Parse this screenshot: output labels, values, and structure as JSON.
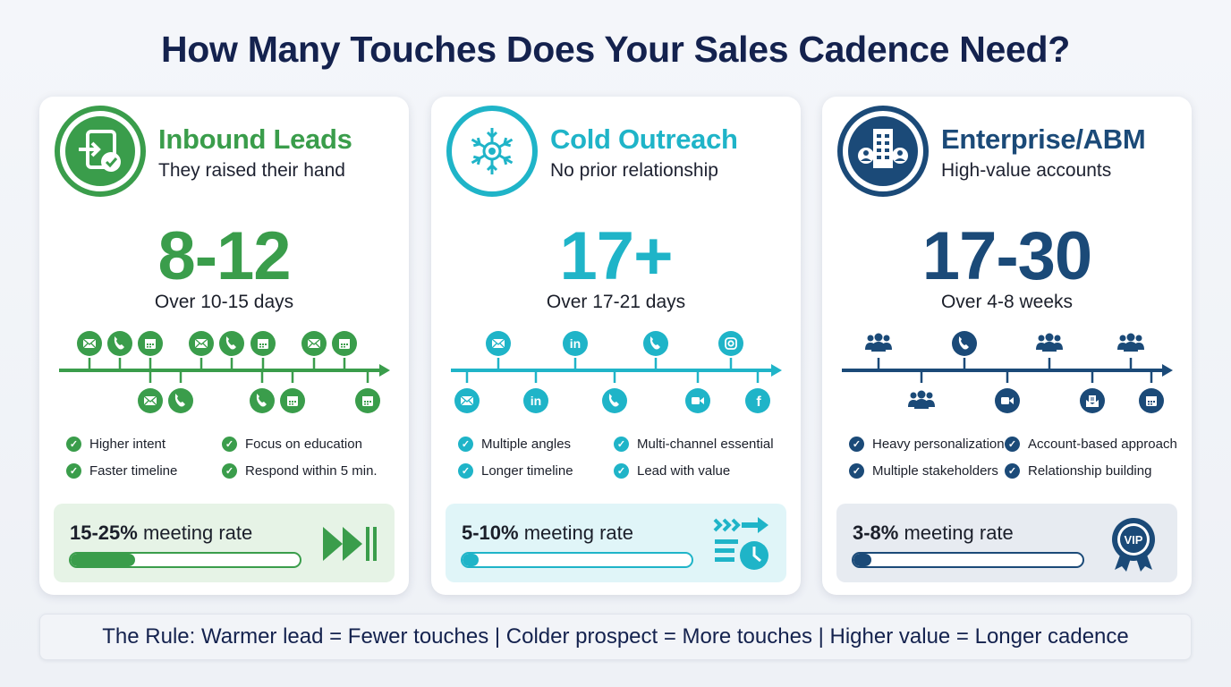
{
  "title": "How Many Touches Does Your Sales Cadence Need?",
  "cards": [
    {
      "id": "inbound",
      "color": "#3a9d4b",
      "panel_bg": "#e6f3e6",
      "icon": "sign-in-check-icon",
      "title": "Inbound Leads",
      "subtitle": "They raised their hand",
      "touches": "8-12",
      "duration": "Over 10-15 days",
      "timeline": {
        "above": [
          "mail",
          "phone",
          "calendar",
          "mail",
          "phone",
          "calendar",
          "mail",
          "calendar"
        ],
        "below": [
          "mail",
          "phone",
          "phone",
          "calendar",
          "calendar"
        ]
      },
      "points": [
        "Higher intent",
        "Focus on education",
        "Faster timeline",
        "Respond within 5 min."
      ],
      "rate": "15-25%",
      "rate_label": "meeting rate",
      "rate_fill": 0.28,
      "panel_icon": "fast-forward-icon"
    },
    {
      "id": "cold",
      "color": "#1fb4c8",
      "panel_bg": "#e0f5f8",
      "icon": "snowflake-target-icon",
      "title": "Cold Outreach",
      "subtitle": "No prior relationship",
      "touches": "17+",
      "duration": "Over 17-21 days",
      "timeline": {
        "above": [
          "mail",
          "linkedin",
          "phone",
          "instagram"
        ],
        "below": [
          "mail",
          "linkedin",
          "phone",
          "video",
          "facebook"
        ]
      },
      "points": [
        "Multiple angles",
        "Multi-channel essential",
        "Longer timeline",
        "Lead with value"
      ],
      "rate": "5-10%",
      "rate_label": "meeting rate",
      "rate_fill": 0.07,
      "panel_icon": "list-clock-arrows-icon"
    },
    {
      "id": "enterprise",
      "color": "#1b4a78",
      "panel_bg": "#e7ebf1",
      "icon": "building-people-icon",
      "title": "Enterprise/ABM",
      "subtitle": "High-value accounts",
      "touches": "17-30",
      "duration": "Over 4-8 weeks",
      "timeline": {
        "above": [
          "people",
          "phone",
          "people",
          "people"
        ],
        "below": [
          "people",
          "video",
          "newsletter",
          "calendar"
        ]
      },
      "points": [
        "Heavy personalization",
        "Account-based approach",
        "Multiple stakeholders",
        "Relationship building"
      ],
      "rate": "3-8%",
      "rate_label": "meeting rate",
      "rate_fill": 0.08,
      "panel_icon": "vip-badge-icon"
    }
  ],
  "rule": "The Rule: Warmer lead = Fewer touches | Colder prospect = More touches | Higher value = Longer cadence"
}
